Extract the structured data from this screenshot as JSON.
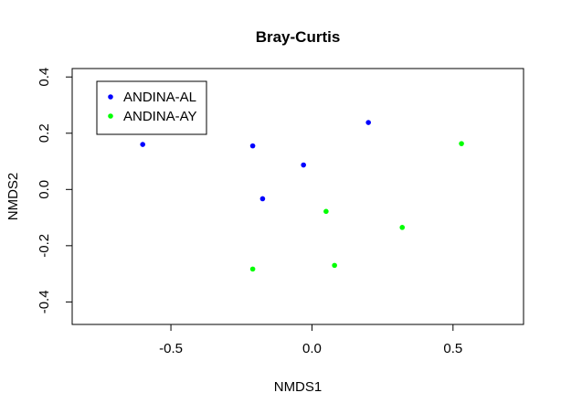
{
  "chart_data": {
    "type": "scatter",
    "title": "Bray-Curtis",
    "xlabel": "NMDS1",
    "ylabel": "NMDS2",
    "xlim": [
      -0.85,
      0.75
    ],
    "ylim": [
      -0.48,
      0.43
    ],
    "xticks": [
      -0.5,
      0.0,
      0.5
    ],
    "xtick_labels": [
      "-0.5",
      "0.0",
      "0.5"
    ],
    "yticks": [
      -0.4,
      -0.2,
      0.0,
      0.2,
      0.4
    ],
    "ytick_labels": [
      "-0.4",
      "-0.2",
      "0.0",
      "0.2",
      "0.4"
    ],
    "grid": false,
    "legend_position": "top-left",
    "series": [
      {
        "name": "ANDINA-AL",
        "color": "#0000ff",
        "points": [
          {
            "x": -0.6,
            "y": 0.16
          },
          {
            "x": -0.21,
            "y": 0.155
          },
          {
            "x": -0.175,
            "y": -0.033
          },
          {
            "x": -0.03,
            "y": 0.087
          },
          {
            "x": 0.2,
            "y": 0.238
          }
        ]
      },
      {
        "name": "ANDINA-AY",
        "color": "#00ff00",
        "points": [
          {
            "x": -0.21,
            "y": -0.283
          },
          {
            "x": 0.05,
            "y": -0.078
          },
          {
            "x": 0.08,
            "y": -0.27
          },
          {
            "x": 0.32,
            "y": -0.135
          },
          {
            "x": 0.53,
            "y": 0.163
          }
        ]
      }
    ]
  }
}
